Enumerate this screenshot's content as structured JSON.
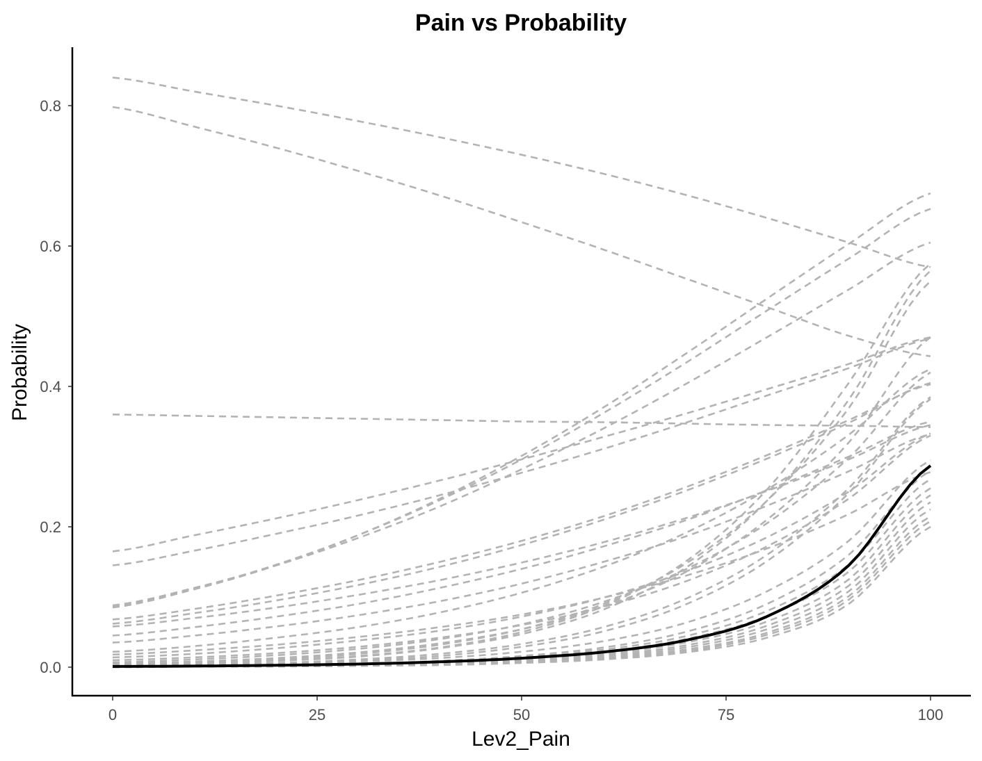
{
  "chart_data": {
    "type": "line",
    "title": "Pain vs Probability",
    "xlabel": "Lev2_Pain",
    "ylabel": "Probability",
    "xlim": [
      -5,
      105
    ],
    "ylim": [
      -0.04,
      0.88
    ],
    "x_ticks": [
      0,
      25,
      50,
      75,
      100
    ],
    "y_ticks": [
      0.0,
      0.2,
      0.4,
      0.6,
      0.8
    ],
    "grid": false,
    "legend": "none",
    "colors": {
      "highlight": "#000000",
      "others": "#b3b3b3"
    },
    "x": [
      0,
      10,
      20,
      30,
      40,
      50,
      60,
      70,
      80,
      90,
      100
    ],
    "highlight_series": {
      "style": "solid",
      "values": [
        0.001,
        0.0016,
        0.0027,
        0.0045,
        0.0076,
        0.0128,
        0.0216,
        0.0381,
        0.0722,
        0.145,
        0.287
      ]
    },
    "series": [
      {
        "style": "dashed",
        "values": [
          0.84,
          0.82,
          0.8,
          0.778,
          0.755,
          0.73,
          0.703,
          0.673,
          0.64,
          0.605,
          0.57
        ]
      },
      {
        "style": "dashed",
        "values": [
          0.798,
          0.77,
          0.74,
          0.707,
          0.672,
          0.634,
          0.595,
          0.554,
          0.513,
          0.472,
          0.443
        ]
      },
      {
        "style": "dashed",
        "values": [
          0.36,
          0.358,
          0.356,
          0.354,
          0.352,
          0.35,
          0.349,
          0.347,
          0.345,
          0.344,
          0.342
        ]
      },
      {
        "style": "dashed",
        "values": [
          0.088,
          0.113,
          0.145,
          0.184,
          0.229,
          0.282,
          0.34,
          0.403,
          0.47,
          0.538,
          0.605
        ]
      },
      {
        "style": "dashed",
        "values": [
          0.086,
          0.112,
          0.146,
          0.188,
          0.238,
          0.296,
          0.362,
          0.433,
          0.508,
          0.582,
          0.653
        ]
      },
      {
        "style": "dashed",
        "values": [
          0.085,
          0.111,
          0.145,
          0.188,
          0.24,
          0.301,
          0.37,
          0.446,
          0.525,
          0.603,
          0.675
        ]
      },
      {
        "style": "dashed",
        "values": [
          0.165,
          0.188,
          0.212,
          0.238,
          0.266,
          0.296,
          0.328,
          0.361,
          0.396,
          0.432,
          0.47
        ]
      },
      {
        "style": "dashed",
        "values": [
          0.145,
          0.166,
          0.19,
          0.216,
          0.245,
          0.277,
          0.311,
          0.348,
          0.387,
          0.426,
          0.468
        ]
      },
      {
        "style": "dashed",
        "values": [
          0.068,
          0.083,
          0.102,
          0.124,
          0.15,
          0.18,
          0.215,
          0.256,
          0.302,
          0.352,
          0.403
        ]
      },
      {
        "style": "dashed",
        "values": [
          0.062,
          0.077,
          0.095,
          0.117,
          0.143,
          0.174,
          0.21,
          0.251,
          0.297,
          0.348,
          0.405
        ]
      },
      {
        "style": "dashed",
        "values": [
          0.058,
          0.07,
          0.085,
          0.103,
          0.124,
          0.149,
          0.178,
          0.212,
          0.251,
          0.296,
          0.345
        ]
      },
      {
        "style": "dashed",
        "values": [
          0.045,
          0.057,
          0.072,
          0.09,
          0.113,
          0.14,
          0.172,
          0.209,
          0.252,
          0.3,
          0.35
        ]
      },
      {
        "style": "dashed",
        "values": [
          0.035,
          0.045,
          0.058,
          0.074,
          0.094,
          0.119,
          0.15,
          0.186,
          0.23,
          0.279,
          0.332
        ]
      },
      {
        "style": "dashed",
        "values": [
          0.022,
          0.03,
          0.042,
          0.057,
          0.078,
          0.106,
          0.143,
          0.191,
          0.253,
          0.331,
          0.425
        ]
      },
      {
        "style": "dashed",
        "values": [
          0.018,
          0.024,
          0.032,
          0.043,
          0.057,
          0.075,
          0.099,
          0.13,
          0.169,
          0.218,
          0.278
        ]
      },
      {
        "style": "dashed",
        "values": [
          0.014,
          0.019,
          0.027,
          0.038,
          0.052,
          0.072,
          0.099,
          0.136,
          0.185,
          0.25,
          0.333
        ]
      },
      {
        "style": "dashed",
        "values": [
          0.01,
          0.014,
          0.02,
          0.029,
          0.042,
          0.06,
          0.086,
          0.122,
          0.172,
          0.24,
          0.33
        ]
      },
      {
        "style": "dashed",
        "values": [
          0.007,
          0.011,
          0.017,
          0.026,
          0.04,
          0.061,
          0.093,
          0.139,
          0.205,
          0.298,
          0.42
        ]
      },
      {
        "style": "dashed",
        "values": [
          0.005,
          0.008,
          0.013,
          0.021,
          0.034,
          0.054,
          0.086,
          0.135,
          0.21,
          0.32,
          0.47
        ]
      },
      {
        "style": "dashed",
        "values": [
          0.004,
          0.007,
          0.011,
          0.019,
          0.032,
          0.054,
          0.09,
          0.147,
          0.237,
          0.369,
          0.55
        ]
      },
      {
        "style": "dashed",
        "values": [
          0.003,
          0.005,
          0.009,
          0.016,
          0.028,
          0.05,
          0.087,
          0.15,
          0.253,
          0.405,
          0.575
        ]
      },
      {
        "style": "dashed",
        "values": [
          0.003,
          0.005,
          0.009,
          0.015,
          0.027,
          0.047,
          0.082,
          0.141,
          0.237,
          0.381,
          0.565
        ]
      },
      {
        "style": "dashed",
        "values": [
          0.002,
          0.004,
          0.006,
          0.011,
          0.019,
          0.033,
          0.057,
          0.097,
          0.16,
          0.255,
          0.385
        ]
      },
      {
        "style": "dashed",
        "values": [
          0.002,
          0.003,
          0.005,
          0.009,
          0.016,
          0.029,
          0.051,
          0.089,
          0.151,
          0.248,
          0.382
        ]
      },
      {
        "style": "dashed",
        "values": [
          0.002,
          0.003,
          0.005,
          0.008,
          0.013,
          0.022,
          0.037,
          0.063,
          0.108,
          0.18,
          0.295
        ]
      },
      {
        "style": "dashed",
        "values": [
          0.001,
          0.002,
          0.003,
          0.005,
          0.009,
          0.016,
          0.028,
          0.05,
          0.09,
          0.16,
          0.28
        ]
      },
      {
        "style": "dashed",
        "values": [
          0.001,
          0.002,
          0.003,
          0.005,
          0.008,
          0.014,
          0.025,
          0.044,
          0.08,
          0.146,
          0.268
        ]
      },
      {
        "style": "dashed",
        "values": [
          0.001,
          0.002,
          0.003,
          0.004,
          0.007,
          0.013,
          0.022,
          0.04,
          0.073,
          0.136,
          0.255
        ]
      },
      {
        "style": "dashed",
        "values": [
          0.001,
          0.001,
          0.002,
          0.004,
          0.006,
          0.011,
          0.019,
          0.035,
          0.065,
          0.125,
          0.245
        ]
      },
      {
        "style": "dashed",
        "values": [
          0.001,
          0.001,
          0.002,
          0.003,
          0.005,
          0.009,
          0.017,
          0.031,
          0.059,
          0.116,
          0.235
        ]
      },
      {
        "style": "dashed",
        "values": [
          0.001,
          0.001,
          0.002,
          0.003,
          0.005,
          0.008,
          0.015,
          0.028,
          0.054,
          0.108,
          0.225
        ]
      },
      {
        "style": "dashed",
        "values": [
          0.0,
          0.001,
          0.001,
          0.002,
          0.004,
          0.007,
          0.013,
          0.025,
          0.049,
          0.101,
          0.215
        ]
      },
      {
        "style": "dashed",
        "values": [
          0.0,
          0.001,
          0.001,
          0.002,
          0.004,
          0.007,
          0.012,
          0.023,
          0.046,
          0.096,
          0.208
        ]
      },
      {
        "style": "dashed",
        "values": [
          0.0,
          0.001,
          0.001,
          0.002,
          0.003,
          0.006,
          0.011,
          0.021,
          0.042,
          0.09,
          0.2
        ]
      }
    ]
  }
}
